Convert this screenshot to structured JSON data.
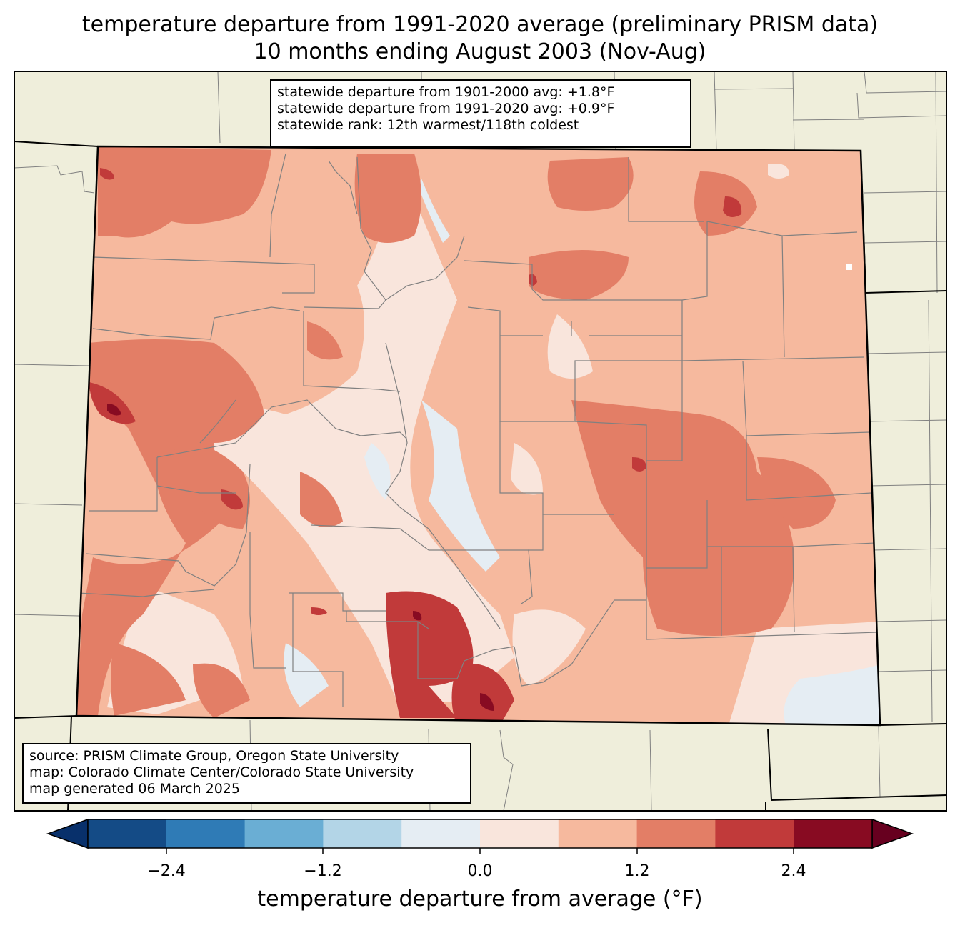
{
  "title": {
    "line1": "temperature departure from 1991-2020 average (preliminary PRISM data)",
    "line2": "10 months ending August 2003 (Nov-Aug)"
  },
  "stats": {
    "line1": "statewide departure from 1901-2000 avg: +1.8°F",
    "line2": "statewide departure from 1991-2020 avg: +0.9°F",
    "line3": "statewide rank: 12th warmest/118th coldest"
  },
  "source": {
    "line1": "source: PRISM Climate Group, Oregon State University",
    "line2": "map: Colorado Climate Center/Colorado State University",
    "line3": "map generated 06 March 2025"
  },
  "colorbar": {
    "label": "temperature departure from average (°F)",
    "ticks": [
      "−2.4",
      "−1.2",
      "0.0",
      "1.2",
      "2.4"
    ],
    "colors": [
      "#08306b",
      "#144b86",
      "#2f7bb6",
      "#6aaed4",
      "#b3d5e7",
      "#e5edf3",
      "#f9e5dc",
      "#f6b99e",
      "#e37e66",
      "#c13a3a",
      "#880b22",
      "#67001f"
    ]
  },
  "colors": {
    "land": "#efeedb",
    "state_border": "#000000",
    "county_border": "#808080"
  }
}
